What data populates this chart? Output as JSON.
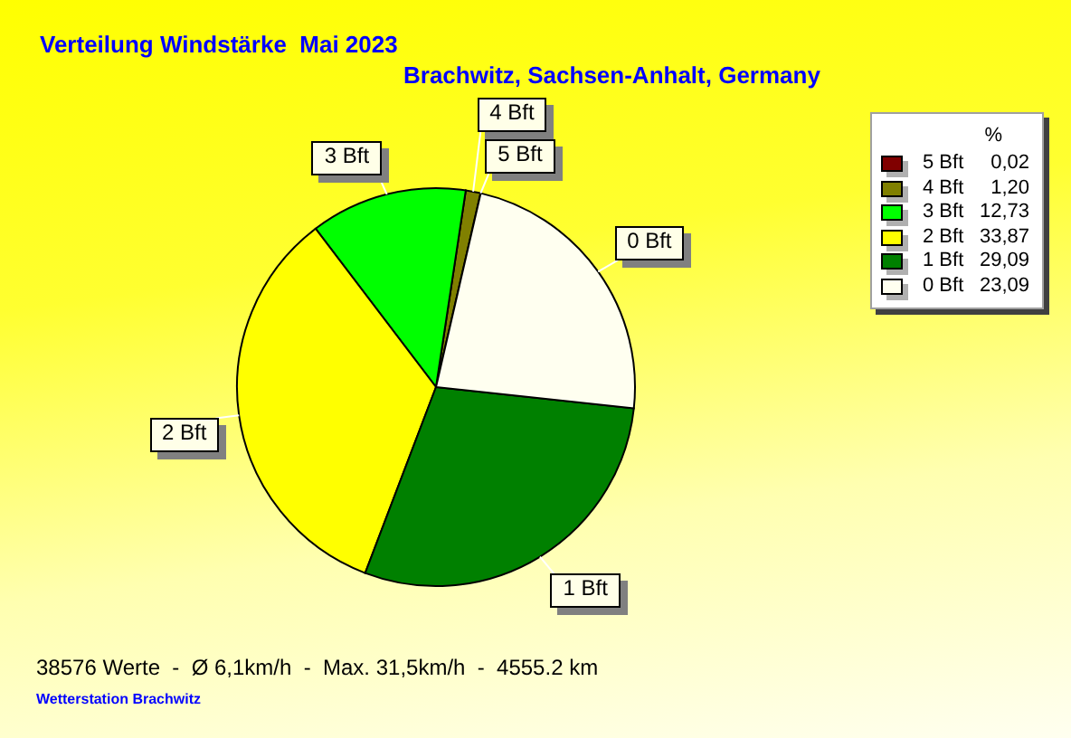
{
  "chart_data": {
    "type": "pie",
    "title": "Verteilung Windstärke  Mai 2023",
    "subtitle": "Brachwitz, Sachsen-Anhalt, Germany",
    "legend_title": "%",
    "categories": [
      "5 Bft",
      "4 Bft",
      "3 Bft",
      "2 Bft",
      "1 Bft",
      "0 Bft"
    ],
    "values": [
      0.02,
      1.2,
      12.73,
      33.87,
      29.09,
      23.09
    ],
    "value_labels": [
      "0,02",
      "1,20",
      "12,73",
      "33,87",
      "29,09",
      "23,09"
    ],
    "colors": [
      "#800000",
      "#808000",
      "#00ff00",
      "#ffff00",
      "#008000",
      "#fffff0"
    ],
    "legend": "top right",
    "annotations": [
      "38576 Werte  -  Ø 6,1km/h  -  Max. 31,5km/h  -  4555.2 km",
      "Wetterstation Brachwitz"
    ]
  }
}
